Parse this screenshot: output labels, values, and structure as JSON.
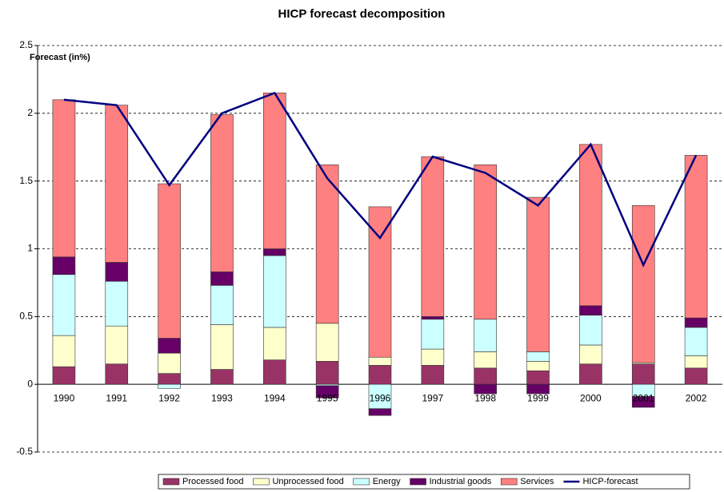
{
  "chart_data": {
    "type": "bar",
    "stacked": true,
    "title": "HICP forecast decomposition",
    "y_label": "Forecast (in%)",
    "categories": [
      "1990",
      "1991",
      "1992",
      "1993",
      "1994",
      "1995",
      "1996",
      "1997",
      "1998",
      "1999",
      "2000",
      "2001",
      "2002"
    ],
    "series": [
      {
        "name": "Processed food",
        "color": "#993366",
        "values": [
          0.13,
          0.15,
          0.08,
          0.11,
          0.18,
          0.17,
          0.14,
          0.14,
          0.12,
          0.1,
          0.15,
          0.15,
          0.12
        ]
      },
      {
        "name": "Unprocessed food",
        "color": "#ffffcc",
        "values": [
          0.23,
          0.28,
          0.15,
          0.33,
          0.24,
          0.28,
          0.06,
          0.12,
          0.12,
          0.07,
          0.14,
          0.01,
          0.09
        ]
      },
      {
        "name": "Energy",
        "color": "#ccffff",
        "values": [
          0.45,
          0.33,
          -0.03,
          0.29,
          0.53,
          -0.01,
          -0.18,
          0.22,
          0.24,
          0.07,
          0.22,
          -0.09,
          0.21
        ]
      },
      {
        "name": "Industrial goods",
        "color": "#660066",
        "values": [
          0.13,
          0.14,
          0.11,
          0.1,
          0.05,
          -0.09,
          -0.05,
          0.02,
          -0.07,
          -0.07,
          0.07,
          -0.08,
          0.07
        ]
      },
      {
        "name": "Services",
        "color": "#ff8080",
        "values": [
          1.16,
          1.16,
          1.14,
          1.16,
          1.15,
          1.17,
          1.11,
          1.18,
          1.14,
          1.14,
          1.19,
          1.16,
          1.2
        ]
      },
      {
        "name": "HICP-forecast",
        "type": "line",
        "color": "#000080",
        "values": [
          2.1,
          2.06,
          1.47,
          2.0,
          2.15,
          1.52,
          1.08,
          1.68,
          1.56,
          1.32,
          1.77,
          0.88,
          1.69
        ]
      }
    ],
    "ylim": [
      -0.5,
      2.5
    ],
    "yticks": [
      -0.5,
      0,
      0.5,
      1,
      1.5,
      2,
      2.5
    ],
    "grid": true,
    "legend": "bottom"
  }
}
